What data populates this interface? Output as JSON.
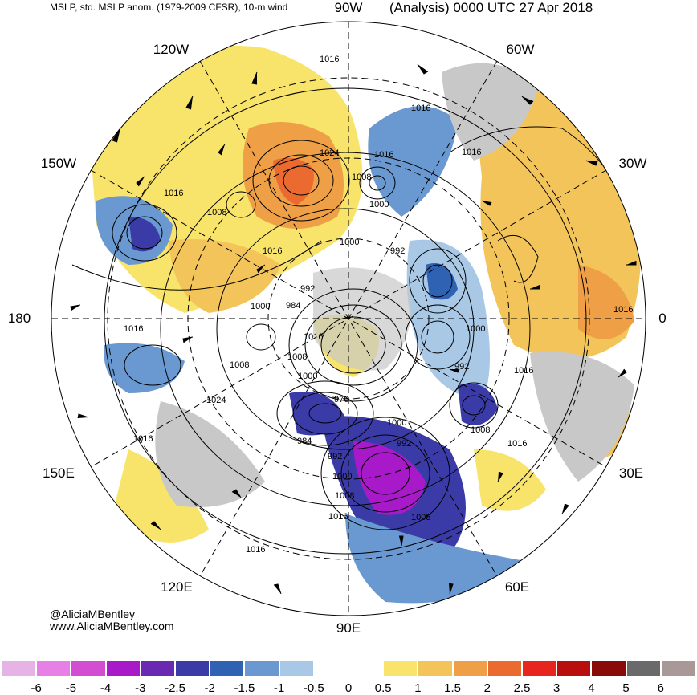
{
  "header": {
    "left": "MSLP, std. MSLP anom. (1979-2009 CFSR), 10-m wind",
    "right": "(Analysis) 0000 UTC 27 Apr 2018"
  },
  "longitude_labels": {
    "top": "90W",
    "top_left": "120W",
    "left_upper": "150W",
    "left": "180",
    "left_lower": "150E",
    "bottom_left": "120E",
    "bottom": "90E",
    "bottom_right": "60E",
    "right_lower": "30E",
    "right": "0",
    "right_upper": "30W",
    "top_right": "60W"
  },
  "pressure_labels": [
    "1016",
    "1016",
    "1016",
    "1016",
    "1024",
    "1016",
    "1008",
    "1000",
    "1016",
    "1000",
    "992",
    "1000",
    "984",
    "992",
    "1016",
    "1008",
    "1000",
    "1008",
    "1016",
    "1024",
    "976",
    "1000",
    "984",
    "992",
    "992",
    "1008",
    "1000",
    "1016",
    "1008",
    "1016",
    "1008",
    "1016",
    "1000",
    "1016",
    "1008",
    "1016",
    "992",
    "1016"
  ],
  "credit": {
    "handle": "@AliciaMBentley",
    "website": "www.AliciaMBentley.com"
  },
  "colorbar": {
    "colors": [
      "#e6b3e6",
      "#e680e6",
      "#d24dd2",
      "#a719c9",
      "#6a29b3",
      "#3b3ba8",
      "#2f62b3",
      "#6a99d1",
      "#a8c8e6",
      "#ffffff",
      "#ffffff",
      "#f8e46a",
      "#f3c45a",
      "#ef9f45",
      "#eb6a30",
      "#e8241e",
      "#b80e0e",
      "#8a0a0a",
      "#6a6a6a",
      "#a89898"
    ],
    "ticks": [
      "-6",
      "-5",
      "-4",
      "-3",
      "-2.5",
      "-2",
      "-1.5",
      "-1",
      "-0.5",
      "0",
      "0.5",
      "1",
      "1.5",
      "2",
      "2.5",
      "3",
      "4",
      "5",
      "6"
    ]
  }
}
